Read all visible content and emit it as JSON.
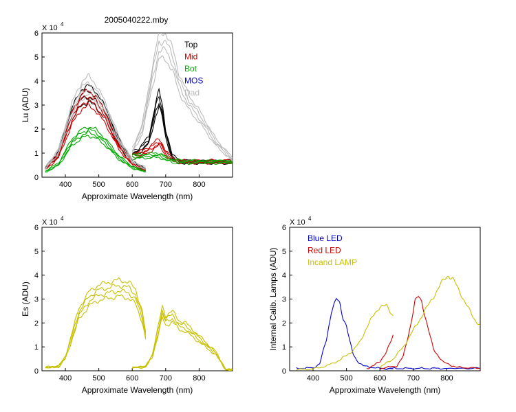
{
  "figure_title": "2005040222.mby",
  "chart_data": [
    {
      "id": "lu",
      "type": "line",
      "xlabel": "Approximate Wavelength (nm)",
      "ylabel": "Lu (ADU)",
      "y_multiplier": "X 10",
      "y_multiplier_exp": "4",
      "xlim": [
        330,
        900
      ],
      "ylim": [
        0,
        6
      ],
      "xticks": [
        400,
        500,
        600,
        700,
        800
      ],
      "yticks": [
        0,
        1,
        2,
        3,
        4,
        5,
        6
      ],
      "legend_placement": "top-right",
      "series": [
        {
          "name": "Top",
          "color": "#000000",
          "x_blue": [
            340,
            380,
            420,
            450,
            470,
            490,
            520,
            560,
            600,
            640
          ],
          "y_blue": [
            0.4,
            1.1,
            2.9,
            3.7,
            3.8,
            3.6,
            2.9,
            1.6,
            0.7,
            0.35
          ],
          "x_red": [
            600,
            620,
            650,
            670,
            680,
            690,
            700,
            720,
            750,
            800,
            900
          ],
          "y_red": [
            1.1,
            1.2,
            1.7,
            3.1,
            3.6,
            3.0,
            2.0,
            0.9,
            0.7,
            0.7,
            0.7
          ]
        },
        {
          "name": "Mid",
          "color": "#cc0000",
          "x_blue": [
            340,
            380,
            420,
            450,
            470,
            490,
            520,
            560,
            600,
            640
          ],
          "y_blue": [
            0.35,
            1.0,
            2.7,
            3.5,
            3.6,
            3.4,
            2.7,
            1.4,
            0.6,
            0.3
          ],
          "x_red": [
            600,
            620,
            650,
            670,
            680,
            690,
            700,
            720,
            750,
            800,
            900
          ],
          "y_red": [
            1.0,
            1.05,
            1.25,
            1.5,
            1.6,
            1.4,
            1.1,
            0.8,
            0.7,
            0.7,
            0.7
          ]
        },
        {
          "name": "Bot",
          "color": "#00aa00",
          "x_blue": [
            340,
            380,
            420,
            450,
            470,
            490,
            520,
            560,
            600,
            640
          ],
          "y_blue": [
            0.25,
            0.6,
            1.6,
            2.0,
            2.1,
            2.0,
            1.6,
            0.9,
            0.45,
            0.25
          ],
          "x_red": [
            600,
            620,
            650,
            670,
            680,
            690,
            700,
            720,
            750,
            800,
            900
          ],
          "y_red": [
            0.95,
            0.95,
            0.98,
            1.0,
            1.0,
            0.95,
            0.85,
            0.75,
            0.7,
            0.7,
            0.7
          ]
        },
        {
          "name": "MOS",
          "color": "#0000cc",
          "x_blue": [],
          "y_blue": [],
          "x_red": [],
          "y_red": []
        },
        {
          "name": "Dad",
          "color": "#bbbbbb",
          "x_blue": [
            340,
            380,
            420,
            450,
            470,
            490,
            520,
            560,
            600,
            640
          ],
          "y_blue": [
            0.4,
            1.2,
            3.1,
            4.0,
            4.2,
            3.9,
            3.1,
            1.7,
            0.7,
            0.4
          ],
          "x_red": [
            600,
            630,
            660,
            680,
            700,
            720,
            740,
            770,
            800,
            850,
            900
          ],
          "y_red": [
            1.2,
            2.2,
            4.6,
            6.0,
            6.0,
            5.4,
            4.3,
            3.4,
            2.8,
            1.6,
            0.8
          ]
        }
      ]
    },
    {
      "id": "es",
      "type": "line",
      "xlabel": "Approximate Wavelength (nm)",
      "ylabel": "Es (ADU)",
      "y_multiplier": "X 10",
      "y_multiplier_exp": "4",
      "xlim": [
        330,
        900
      ],
      "ylim": [
        0,
        6
      ],
      "xticks": [
        400,
        500,
        600,
        700,
        800
      ],
      "yticks": [
        0,
        1,
        2,
        3,
        4,
        5,
        6
      ],
      "series": [
        {
          "name": "",
          "color": "#c8c000",
          "x_blue": [
            340,
            380,
            400,
            420,
            440,
            470,
            500,
            530,
            560,
            590,
            610,
            630,
            640
          ],
          "y_blue": [
            0.15,
            0.2,
            0.6,
            1.6,
            2.6,
            3.3,
            3.6,
            3.7,
            3.8,
            3.7,
            3.4,
            2.5,
            1.6
          ],
          "x_red": [
            600,
            640,
            660,
            680,
            690,
            700,
            720,
            740,
            760,
            790,
            820,
            850,
            870,
            880,
            900
          ],
          "y_red": [
            0.15,
            0.18,
            0.7,
            2.0,
            2.7,
            2.3,
            2.5,
            2.1,
            2.0,
            1.6,
            1.2,
            0.8,
            0.3,
            0.05,
            0.05
          ]
        }
      ]
    },
    {
      "id": "cal",
      "type": "line",
      "xlabel": "Approximate Wavelength (nm)",
      "ylabel": "Internal Calib. Lamps (ADU)",
      "y_multiplier": "X 10",
      "y_multiplier_exp": "4",
      "xlim": [
        330,
        900
      ],
      "ylim": [
        0,
        6
      ],
      "xticks": [
        400,
        500,
        600,
        700,
        800
      ],
      "yticks": [
        0,
        1,
        2,
        3,
        4,
        5,
        6
      ],
      "legend_placement": "top-left",
      "series": [
        {
          "name": "Blue LED",
          "color": "#0000cc",
          "x_blue": [
            350,
            400,
            420,
            440,
            455,
            470,
            480,
            490,
            500,
            510,
            520,
            530,
            550,
            600,
            640
          ],
          "y_blue": [
            0.1,
            0.12,
            0.3,
            1.3,
            2.5,
            3.0,
            2.8,
            2.2,
            1.9,
            1.2,
            0.7,
            0.45,
            0.2,
            0.1,
            0.08
          ],
          "x_red": [
            600,
            650,
            700,
            750,
            800,
            900
          ],
          "y_red": [
            0.1,
            0.1,
            0.1,
            0.1,
            0.1,
            0.1
          ]
        },
        {
          "name": "Red LED",
          "color": "#cc0000",
          "x_blue": [
            560,
            580,
            600,
            620,
            635,
            640
          ],
          "y_blue": [
            0.1,
            0.2,
            0.4,
            0.8,
            1.3,
            1.5
          ],
          "x_red": [
            600,
            650,
            670,
            690,
            705,
            715,
            725,
            740,
            760,
            790,
            830,
            900
          ],
          "y_red": [
            0.1,
            0.2,
            0.6,
            1.8,
            2.9,
            3.1,
            2.9,
            2.0,
            0.9,
            0.35,
            0.15,
            0.1
          ]
        },
        {
          "name": "Incand LAMP",
          "color": "#c8c000",
          "x_blue": [
            350,
            400,
            440,
            480,
            500,
            520,
            540,
            560,
            580,
            600,
            620,
            640
          ],
          "y_blue": [
            0.05,
            0.08,
            0.2,
            0.45,
            0.65,
            0.85,
            1.2,
            1.8,
            2.3,
            2.7,
            2.7,
            2.3
          ],
          "x_red": [
            600,
            640,
            670,
            700,
            730,
            760,
            790,
            805,
            820,
            850,
            880,
            900
          ],
          "y_red": [
            0.15,
            0.5,
            1.0,
            1.7,
            2.4,
            3.1,
            3.8,
            4.0,
            3.8,
            3.0,
            2.2,
            1.9
          ]
        }
      ]
    }
  ]
}
